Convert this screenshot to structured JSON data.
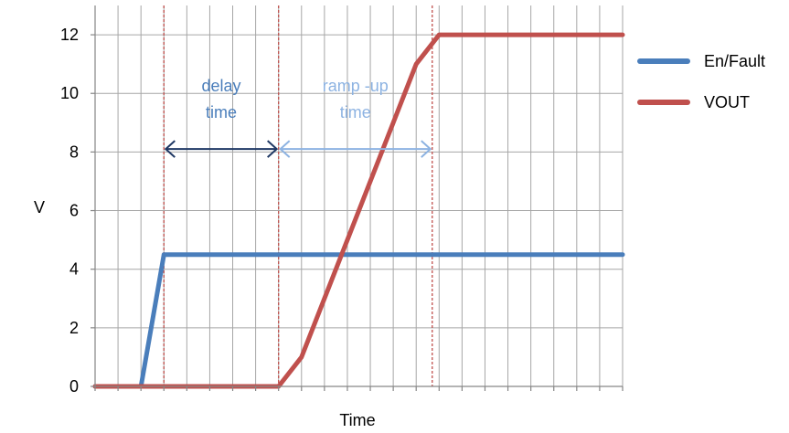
{
  "chart_data": {
    "type": "line",
    "title": "",
    "xlabel": "Time",
    "ylabel": "V",
    "xlim": [
      0,
      23
    ],
    "ylim": [
      0,
      13
    ],
    "y_ticks": [
      0,
      2,
      4,
      6,
      8,
      10,
      12
    ],
    "x_tick_labels": "none",
    "grid": true,
    "legend_position": "right",
    "series": [
      {
        "name": "En/Fault",
        "color": "#4a7ebb",
        "points": [
          [
            0,
            0
          ],
          [
            2,
            0
          ],
          [
            3,
            4.5
          ],
          [
            23,
            4.5
          ]
        ]
      },
      {
        "name": "VOUT",
        "color": "#c0504d",
        "points": [
          [
            0,
            0
          ],
          [
            8,
            0
          ],
          [
            9,
            1
          ],
          [
            14,
            11
          ],
          [
            15,
            12
          ],
          [
            23,
            12
          ]
        ]
      }
    ],
    "vertical_markers": [
      {
        "x": 3,
        "color": "#c0504d",
        "style": "dashed"
      },
      {
        "x": 8,
        "color": "#c0504d",
        "style": "dashed"
      },
      {
        "x": 14.7,
        "color": "#c0504d",
        "style": "dashed"
      }
    ],
    "annotations": [
      {
        "id": "delay",
        "lines": [
          "delay",
          "time"
        ],
        "color": "#4a7ebb",
        "arrow_from_x": 3,
        "arrow_to_x": 8,
        "arrow_y": 8.1,
        "arrow_color": "#1f3864"
      },
      {
        "id": "ramp",
        "lines": [
          "ramp  -up",
          "time"
        ],
        "color": "#8db3e2",
        "arrow_from_x": 8,
        "arrow_to_x": 14.7,
        "arrow_y": 8.1,
        "arrow_color": "#8db3e2"
      }
    ]
  }
}
